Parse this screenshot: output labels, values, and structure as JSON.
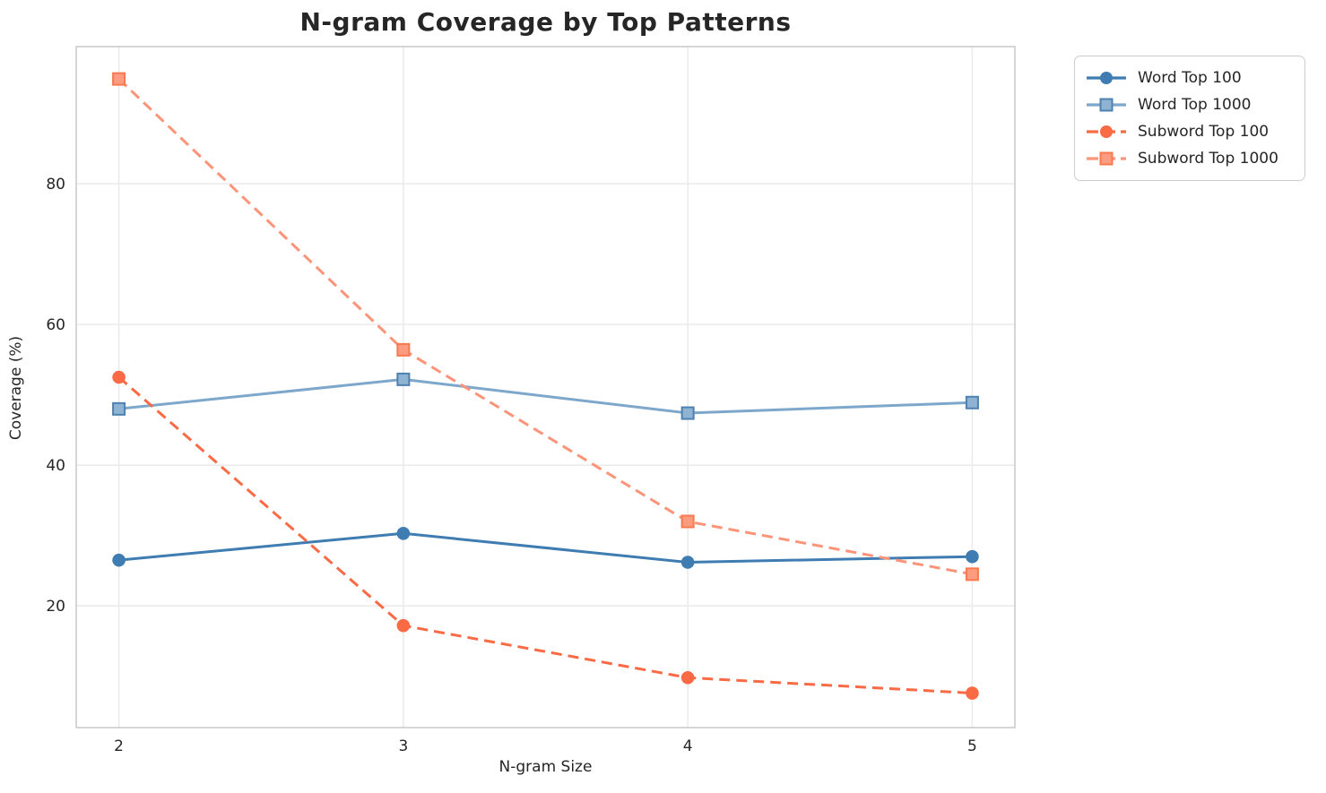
{
  "chart_data": {
    "type": "line",
    "title": "N-gram Coverage by Top Patterns",
    "xlabel": "N-gram Size",
    "ylabel": "Coverage (%)",
    "x": [
      2,
      3,
      4,
      5
    ],
    "x_tick_labels": [
      "2",
      "3",
      "4",
      "5"
    ],
    "y_ticks": [
      20,
      40,
      60,
      80
    ],
    "xlim": [
      1.85,
      5.15
    ],
    "ylim": [
      2.7,
      99.5
    ],
    "grid": true,
    "legend_position": "outside-upper-right",
    "series": [
      {
        "name": "Word Top 100",
        "values": [
          26.5,
          30.3,
          26.2,
          27.0
        ],
        "color": "#3E7CB1",
        "marker": "circle",
        "marker_fill": "#3E7CB1",
        "marker_edge": "#3E7CB1",
        "dashed": false
      },
      {
        "name": "Word Top 1000",
        "values": [
          48.0,
          52.2,
          47.4,
          48.9
        ],
        "color": "#7DA7CB",
        "marker": "square",
        "marker_fill": "#8FB3D3",
        "marker_edge": "#4E81AF",
        "dashed": false
      },
      {
        "name": "Subword Top 100",
        "values": [
          52.5,
          17.2,
          9.8,
          7.6
        ],
        "color": "#F96A45",
        "marker": "circle",
        "marker_fill": "#F96A45",
        "marker_edge": "#F96A45",
        "dashed": true
      },
      {
        "name": "Subword Top 1000",
        "values": [
          94.9,
          56.4,
          32.0,
          24.5
        ],
        "color": "#FB9478",
        "marker": "square",
        "marker_fill": "#FB9C80",
        "marker_edge": "#F8794F",
        "dashed": true
      }
    ],
    "colors": {
      "grid_line": "#ebebeb",
      "spine": "#cccccc",
      "text": "#262626",
      "background": "#ffffff"
    }
  }
}
